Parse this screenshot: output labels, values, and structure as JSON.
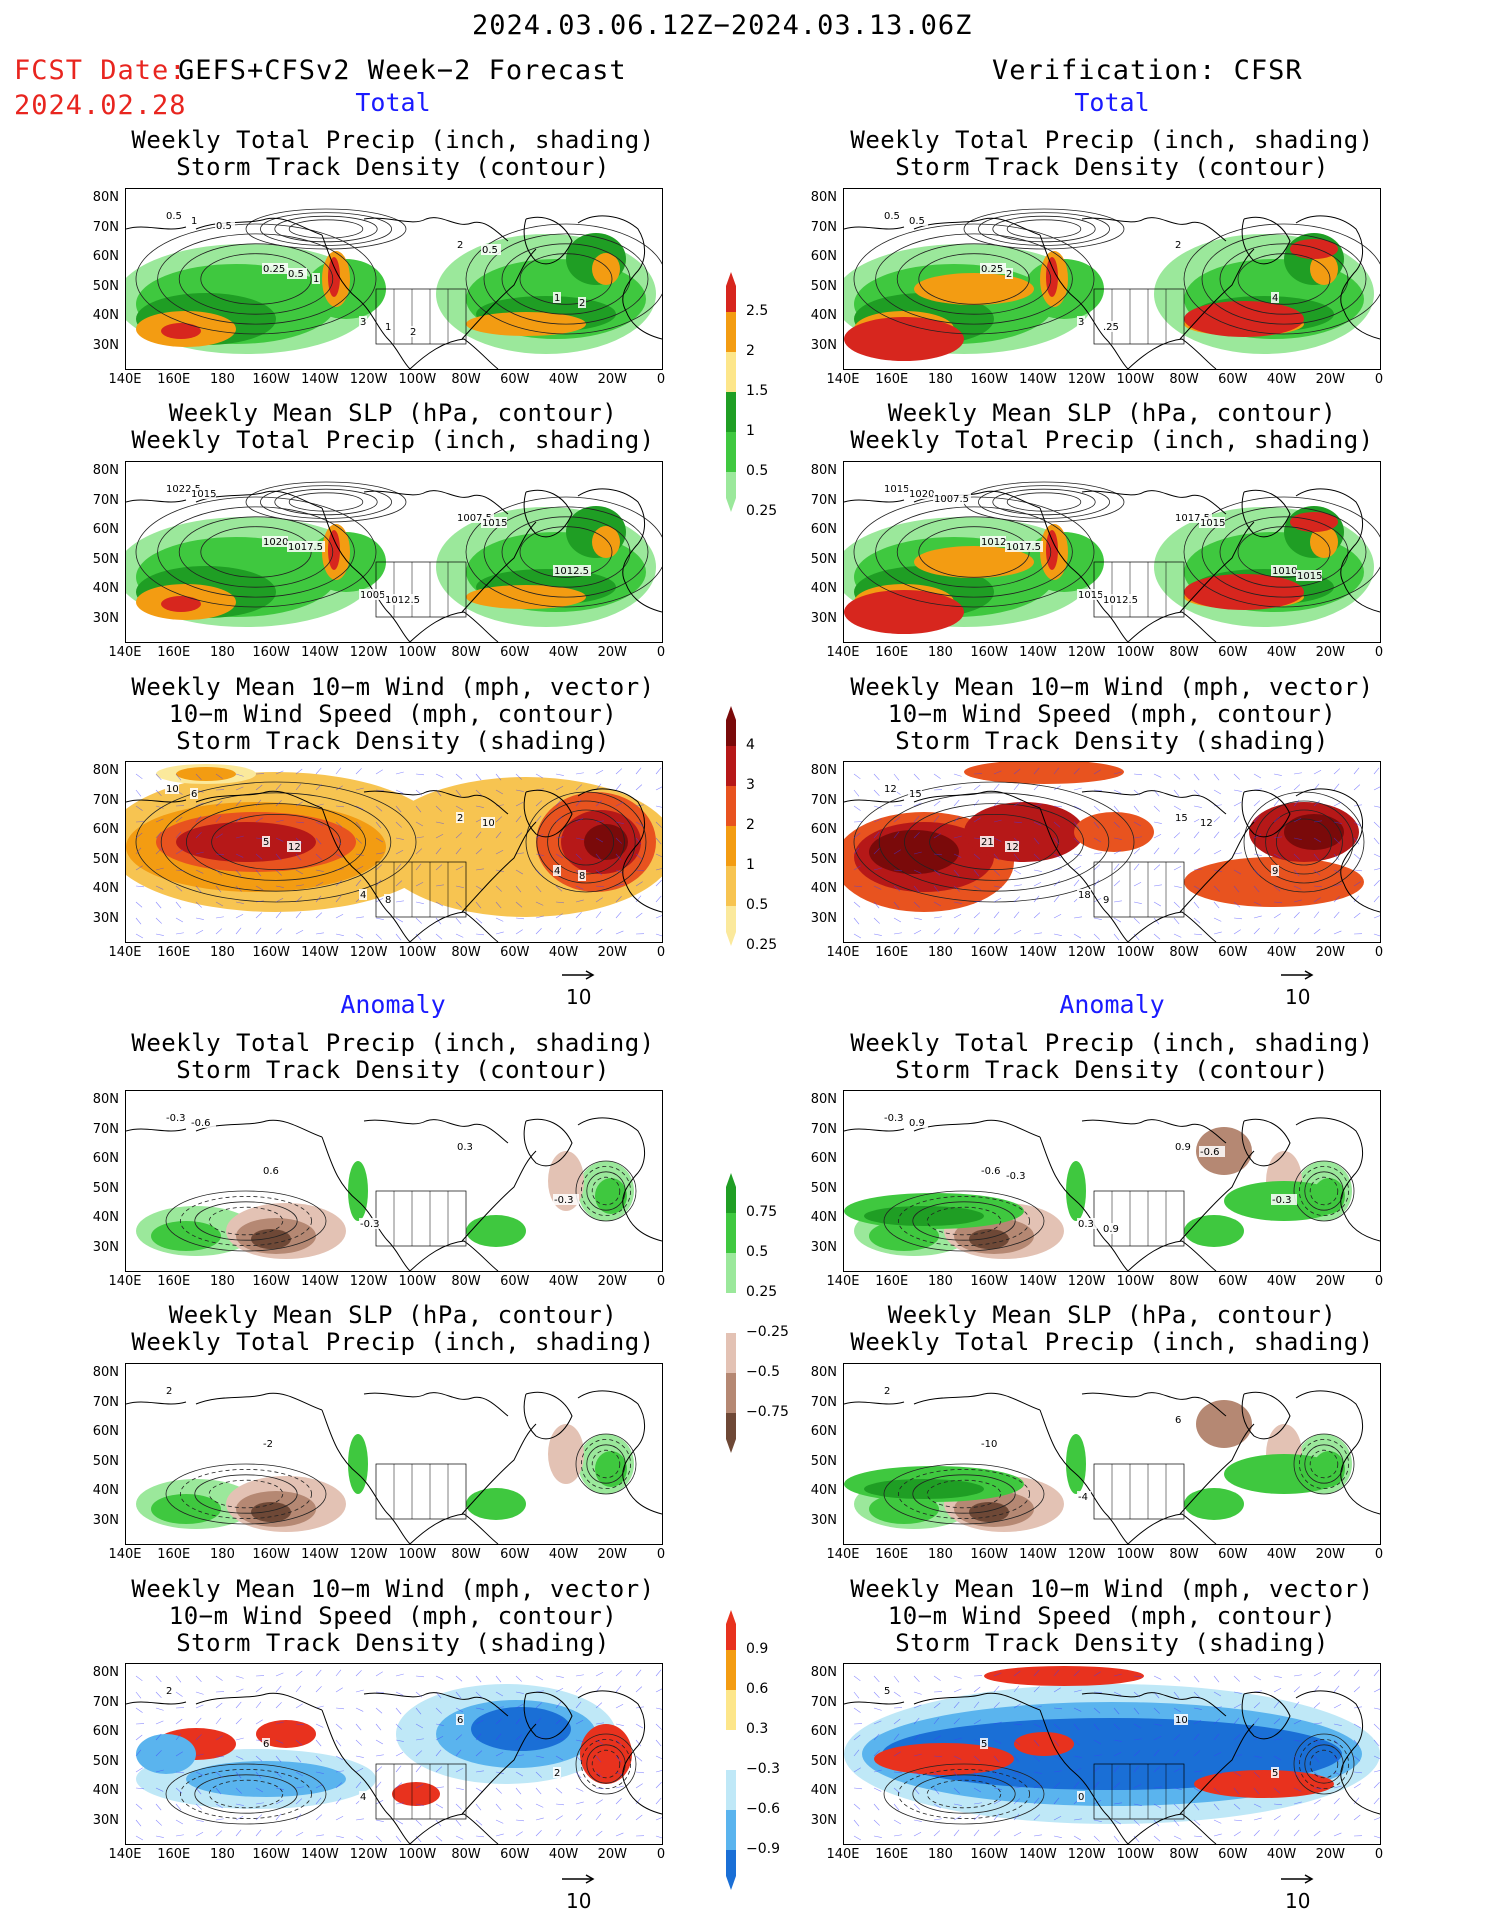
{
  "header": {
    "period": "2024.03.06.12Z−2024.03.13.06Z",
    "fcst_date_label": "FCST Date:",
    "fcst_model": "GEFS+CFSv2 Week−2 Forecast",
    "fcst_date": "2024.02.28",
    "verification": "Verification: CFSR"
  },
  "sections": {
    "total": "Total",
    "anomaly": "Anomaly"
  },
  "panel_titles": {
    "precip_storm": [
      "Weekly Total Precip (inch, shading)",
      "Storm Track Density (contour)"
    ],
    "slp_precip": [
      "Weekly Mean SLP (hPa, contour)",
      "Weekly Total Precip (inch, shading)"
    ],
    "wind_storm": [
      "Weekly Mean 10−m Wind (mph, vector)",
      "10−m Wind Speed (mph, contour)",
      "Storm Track Density (shading)"
    ]
  },
  "axes": {
    "lat_labels": [
      "80N",
      "70N",
      "60N",
      "50N",
      "40N",
      "30N"
    ],
    "lon_labels": [
      "140E",
      "160E",
      "180",
      "160W",
      "140W",
      "120W",
      "100W",
      "80W",
      "60W",
      "40W",
      "20W",
      "0"
    ]
  },
  "vector_ref": "10",
  "colorbars": {
    "precip_total": {
      "ticks": [
        "2.5",
        "2",
        "1.5",
        "1",
        "0.5",
        "0.25"
      ],
      "colors": [
        "#d7261e",
        "#f39c12",
        "#fde68a",
        "#1f9e24",
        "#3fc83f",
        "#9be89b"
      ]
    },
    "storm_total": {
      "ticks": [
        "4",
        "3",
        "2",
        "1",
        "0.5",
        "0.25"
      ],
      "colors": [
        "#7a0a0a",
        "#b61818",
        "#e8531f",
        "#f39c12",
        "#f7c451",
        "#fbe99c"
      ]
    },
    "precip_anom": {
      "ticks": [
        "0.75",
        "0.5",
        "0.25",
        "−0.25",
        "−0.5",
        "−0.75"
      ],
      "colors": [
        "#1f9e24",
        "#3fc83f",
        "#9be89b",
        "#ffffff",
        "#e3c2b4",
        "#b58873",
        "#6e4836"
      ]
    },
    "storm_anom": {
      "ticks": [
        "0.9",
        "0.6",
        "0.3",
        "−0.3",
        "−0.6",
        "−0.9"
      ],
      "colors": [
        "#e8321e",
        "#f39c12",
        "#fde68a",
        "#ffffff",
        "#bfe8f7",
        "#5ab4ee",
        "#1a6fd6"
      ]
    }
  },
  "contour_labels": {
    "L1": [
      "0.5",
      "0.25",
      "3",
      "2",
      "1",
      "1",
      "0.5",
      "1",
      "0.5",
      "2",
      "0.5",
      "1",
      "2"
    ],
    "R1": [
      "0.5",
      "0.25",
      "3",
      "2",
      "4",
      "0.5",
      "2",
      ".25"
    ],
    "L2": [
      "1022.5",
      "1020",
      "1005",
      "1007.5",
      "1012.5",
      "1015",
      "1017.5",
      "1012.5",
      "1015"
    ],
    "R2": [
      "1015",
      "1012",
      "1015",
      "1017.5",
      "1010",
      "1020",
      "1017.5",
      "1012.5",
      "1015",
      "1015",
      "1007.5"
    ],
    "L3": [
      "10",
      "5",
      "4",
      "2",
      "4",
      "6",
      "12",
      "8",
      "10",
      "8"
    ],
    "R3": [
      "12",
      "21",
      "18",
      "15",
      "9",
      "15",
      "12",
      "9",
      "12"
    ],
    "L4": [
      "-0.3",
      "0.6",
      "-0.3",
      "0.3",
      "-0.3",
      "-0.6"
    ],
    "R4": [
      "-0.3",
      "-0.6",
      "0.3",
      "0.9",
      "-0.3",
      "0.9",
      "-0.3",
      "0.9",
      "-0.6"
    ],
    "L5": [
      "2",
      "-2"
    ],
    "R5": [
      "2",
      "-10",
      "-4",
      "6"
    ],
    "L6": [
      "2",
      "6",
      "4",
      "6",
      "2"
    ],
    "R6": [
      "5",
      "5",
      "0",
      "10",
      "5"
    ]
  }
}
